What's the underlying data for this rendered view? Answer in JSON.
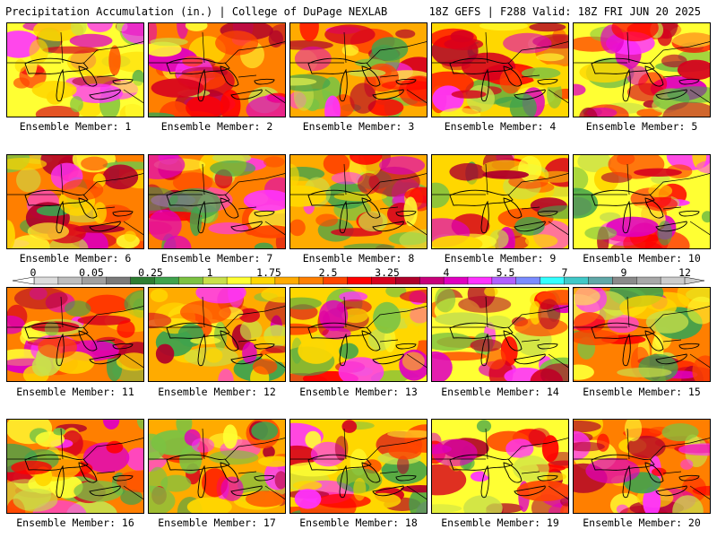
{
  "header": {
    "left_title": "Precipitation Accumulation (in.) | College of DuPage NEXLAB",
    "right_title": "18Z GEFS | F288 Valid: 18Z FRI JUN 20 2025"
  },
  "colorbar": {
    "tick_labels": [
      "0",
      "0.05",
      "0.25",
      "1",
      "1.75",
      "2.5",
      "3.25",
      "4",
      "5.5",
      "7",
      "9",
      "12"
    ],
    "colors": [
      "#dcdcdc",
      "#bebebe",
      "#a0a0a0",
      "#7a7a7a",
      "#2e7d32",
      "#3fa34d",
      "#7cc242",
      "#c9e04a",
      "#ffff33",
      "#ffd700",
      "#ffab00",
      "#ff7f00",
      "#ff4500",
      "#ff0000",
      "#d7001e",
      "#b0002a",
      "#c8007a",
      "#e000c0",
      "#ff33ff",
      "#b060ff",
      "#7a8cff",
      "#33ffff",
      "#40c8c8",
      "#60a8a8",
      "#8a8a8a",
      "#a8a8a8",
      "#cccccc"
    ]
  },
  "members": [
    {
      "label": "Ensemble Member: 1"
    },
    {
      "label": "Ensemble Member: 2"
    },
    {
      "label": "Ensemble Member: 3"
    },
    {
      "label": "Ensemble Member: 4"
    },
    {
      "label": "Ensemble Member: 5"
    },
    {
      "label": "Ensemble Member: 6"
    },
    {
      "label": "Ensemble Member: 7"
    },
    {
      "label": "Ensemble Member: 8"
    },
    {
      "label": "Ensemble Member: 9"
    },
    {
      "label": "Ensemble Member: 10"
    },
    {
      "label": "Ensemble Member: 11"
    },
    {
      "label": "Ensemble Member: 12"
    },
    {
      "label": "Ensemble Member: 13"
    },
    {
      "label": "Ensemble Member: 14"
    },
    {
      "label": "Ensemble Member: 15"
    },
    {
      "label": "Ensemble Member: 16"
    },
    {
      "label": "Ensemble Member: 17"
    },
    {
      "label": "Ensemble Member: 18"
    },
    {
      "label": "Ensemble Member: 19"
    },
    {
      "label": "Ensemble Member: 20"
    }
  ]
}
